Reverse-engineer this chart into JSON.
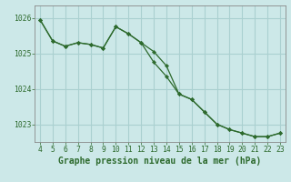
{
  "title": "Graphe pression niveau de la mer (hPa)",
  "x_series1": [
    4,
    5,
    6,
    7,
    8,
    9,
    10,
    11,
    12,
    13,
    14,
    15,
    16,
    17,
    18,
    19,
    20,
    21,
    22,
    23
  ],
  "y_series1": [
    1025.95,
    1025.35,
    1025.2,
    1025.3,
    1025.25,
    1025.15,
    1025.75,
    1025.55,
    1025.3,
    1025.05,
    1024.65,
    1023.85,
    1023.7,
    1023.35,
    1023.0,
    1022.85,
    1022.75,
    1022.65,
    1022.65,
    1022.75
  ],
  "x_series2": [
    4,
    5,
    6,
    7,
    8,
    9,
    10,
    11,
    12,
    13,
    14,
    15,
    16,
    17,
    18,
    19,
    20,
    21,
    22,
    23
  ],
  "y_series2": [
    1025.95,
    1025.35,
    1025.2,
    1025.3,
    1025.25,
    1025.15,
    1025.75,
    1025.55,
    1025.3,
    1024.75,
    1024.35,
    1023.85,
    1023.7,
    1023.35,
    1023.0,
    1022.85,
    1022.75,
    1022.65,
    1022.65,
    1022.75
  ],
  "line_color": "#2d6a2d",
  "marker": "D",
  "marker_size": 2.2,
  "bg_color": "#cce8e8",
  "grid_color": "#aad0d0",
  "text_color": "#2d6a2d",
  "ylim": [
    1022.5,
    1026.35
  ],
  "yticks": [
    1023,
    1024,
    1025,
    1026
  ],
  "xticks": [
    4,
    5,
    6,
    7,
    8,
    9,
    10,
    11,
    12,
    13,
    14,
    15,
    16,
    17,
    18,
    19,
    20,
    21,
    22,
    23
  ],
  "tick_fontsize": 5.8,
  "title_fontsize": 7.0
}
